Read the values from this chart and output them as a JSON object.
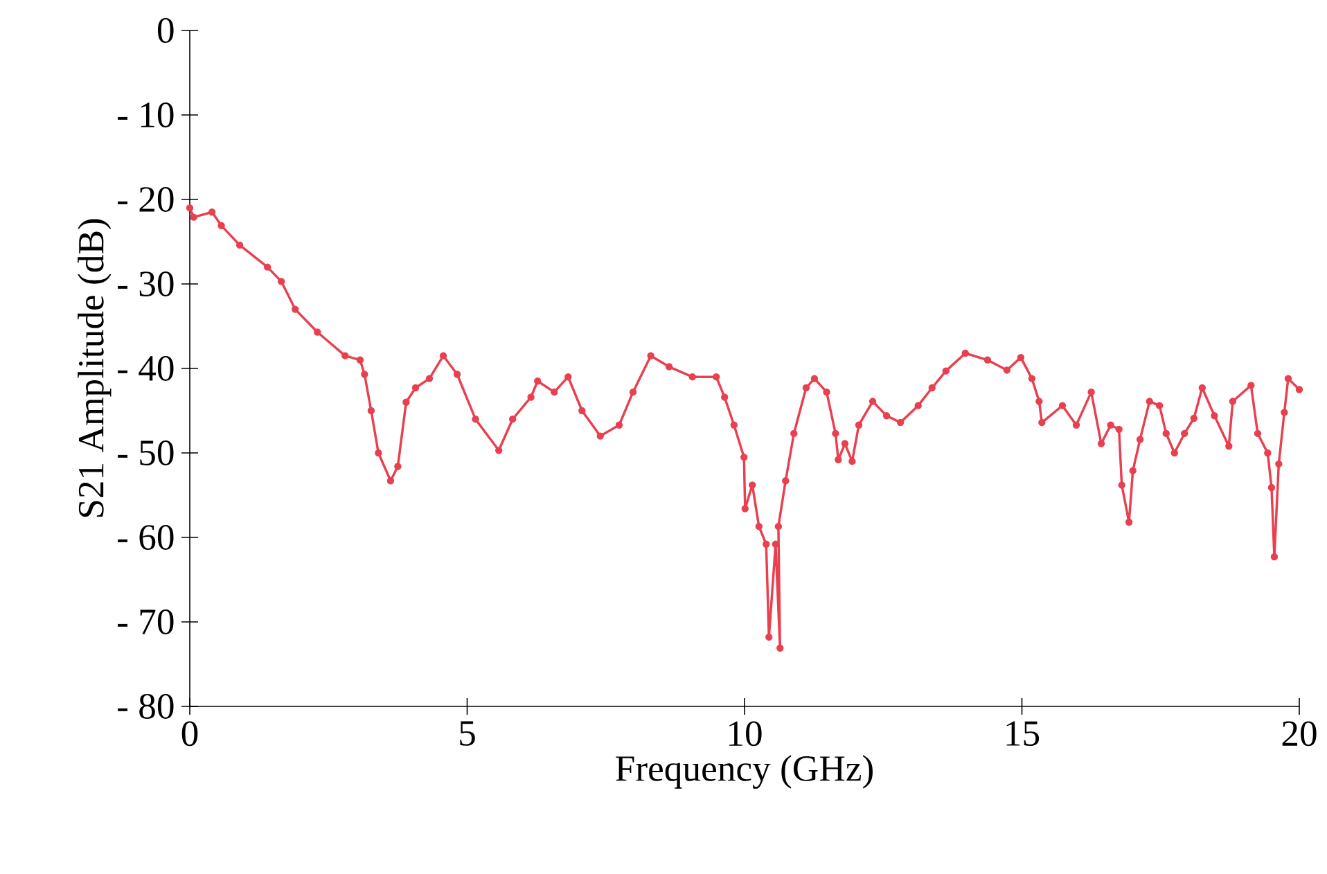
{
  "chart_data": {
    "type": "line",
    "xlabel": "Frequency (GHz)",
    "ylabel": "S21 Amplitude (dB)",
    "xlim": [
      0,
      20
    ],
    "ylim": [
      -80,
      0
    ],
    "xticks": [
      0,
      5,
      10,
      15,
      20
    ],
    "yticks": [
      0,
      {
        "value": -10,
        "label": "- 10"
      },
      {
        "value": -20,
        "label": "- 20"
      },
      {
        "value": -30,
        "label": "- 30"
      },
      {
        "value": -40,
        "label": "- 40"
      },
      {
        "value": -50,
        "label": "- 50"
      },
      {
        "value": -60,
        "label": "- 60"
      },
      {
        "value": -70,
        "label": "- 70"
      },
      {
        "value": -80,
        "label": "- 80"
      }
    ],
    "grid": false,
    "marker": "circle",
    "line_style": "solid",
    "series": [
      {
        "color": "#e8404f",
        "x": [
          0,
          0.07,
          0.4,
          0.57,
          0.9,
          1.4,
          1.65,
          1.9,
          2.3,
          2.8,
          3.07,
          3.15,
          3.27,
          3.4,
          3.62,
          3.75,
          3.9,
          4.07,
          4.32,
          4.57,
          4.82,
          5.15,
          5.57,
          5.82,
          6.15,
          6.27,
          6.57,
          6.82,
          7.07,
          7.4,
          7.74,
          7.99,
          8.31,
          8.64,
          9.06,
          9.49,
          9.64,
          9.81,
          9.99,
          10.01,
          10.14,
          10.26,
          10.39,
          10.44,
          10.56,
          10.64,
          10.61,
          10.74,
          10.89,
          11.11,
          11.26,
          11.48,
          11.64,
          11.69,
          11.81,
          11.94,
          12.06,
          12.31,
          12.56,
          12.81,
          13.13,
          13.38,
          13.63,
          13.98,
          14.38,
          14.73,
          14.98,
          15.18,
          15.31,
          15.36,
          15.73,
          15.98,
          16.25,
          16.43,
          16.6,
          16.75,
          16.8,
          16.93,
          17.0,
          17.13,
          17.3,
          17.48,
          17.6,
          17.75,
          17.93,
          18.1,
          18.25,
          18.47,
          18.73,
          18.8,
          19.13,
          19.25,
          19.43,
          19.5,
          19.55,
          19.63,
          19.73,
          19.8,
          20.0
        ],
        "values": [
          -21,
          -22.1,
          -21.5,
          -23.1,
          -25.4,
          -28,
          -29.7,
          -33,
          -35.7,
          -38.5,
          -39,
          -40.7,
          -45,
          -50,
          -53.3,
          -51.6,
          -44,
          -42.3,
          -41.2,
          -38.5,
          -40.7,
          -46,
          -49.7,
          -46,
          -43.4,
          -41.5,
          -42.8,
          -41,
          -45,
          -48,
          -46.7,
          -42.8,
          -38.5,
          -39.8,
          -41,
          -41,
          -43.4,
          -46.7,
          -50.5,
          -56.6,
          -53.8,
          -58.7,
          -60.8,
          -71.8,
          -60.8,
          -73.1,
          -58.7,
          -53.3,
          -47.7,
          -42.3,
          -41.2,
          -42.8,
          -47.7,
          -50.8,
          -48.9,
          -51,
          -46.7,
          -43.9,
          -45.6,
          -46.4,
          -44.4,
          -42.3,
          -40.3,
          -38.2,
          -39,
          -40.2,
          -38.7,
          -41.2,
          -43.9,
          -46.4,
          -44.4,
          -46.7,
          -42.8,
          -48.9,
          -46.7,
          -47.2,
          -53.8,
          -58.2,
          -52.1,
          -48.4,
          -43.9,
          -44.4,
          -47.7,
          -50,
          -47.7,
          -45.9,
          -42.3,
          -45.6,
          -49.2,
          -43.9,
          -42,
          -47.7,
          -50,
          -54.1,
          -62.3,
          -51.3,
          -45.2,
          -41.2,
          -42.5
        ]
      }
    ]
  }
}
